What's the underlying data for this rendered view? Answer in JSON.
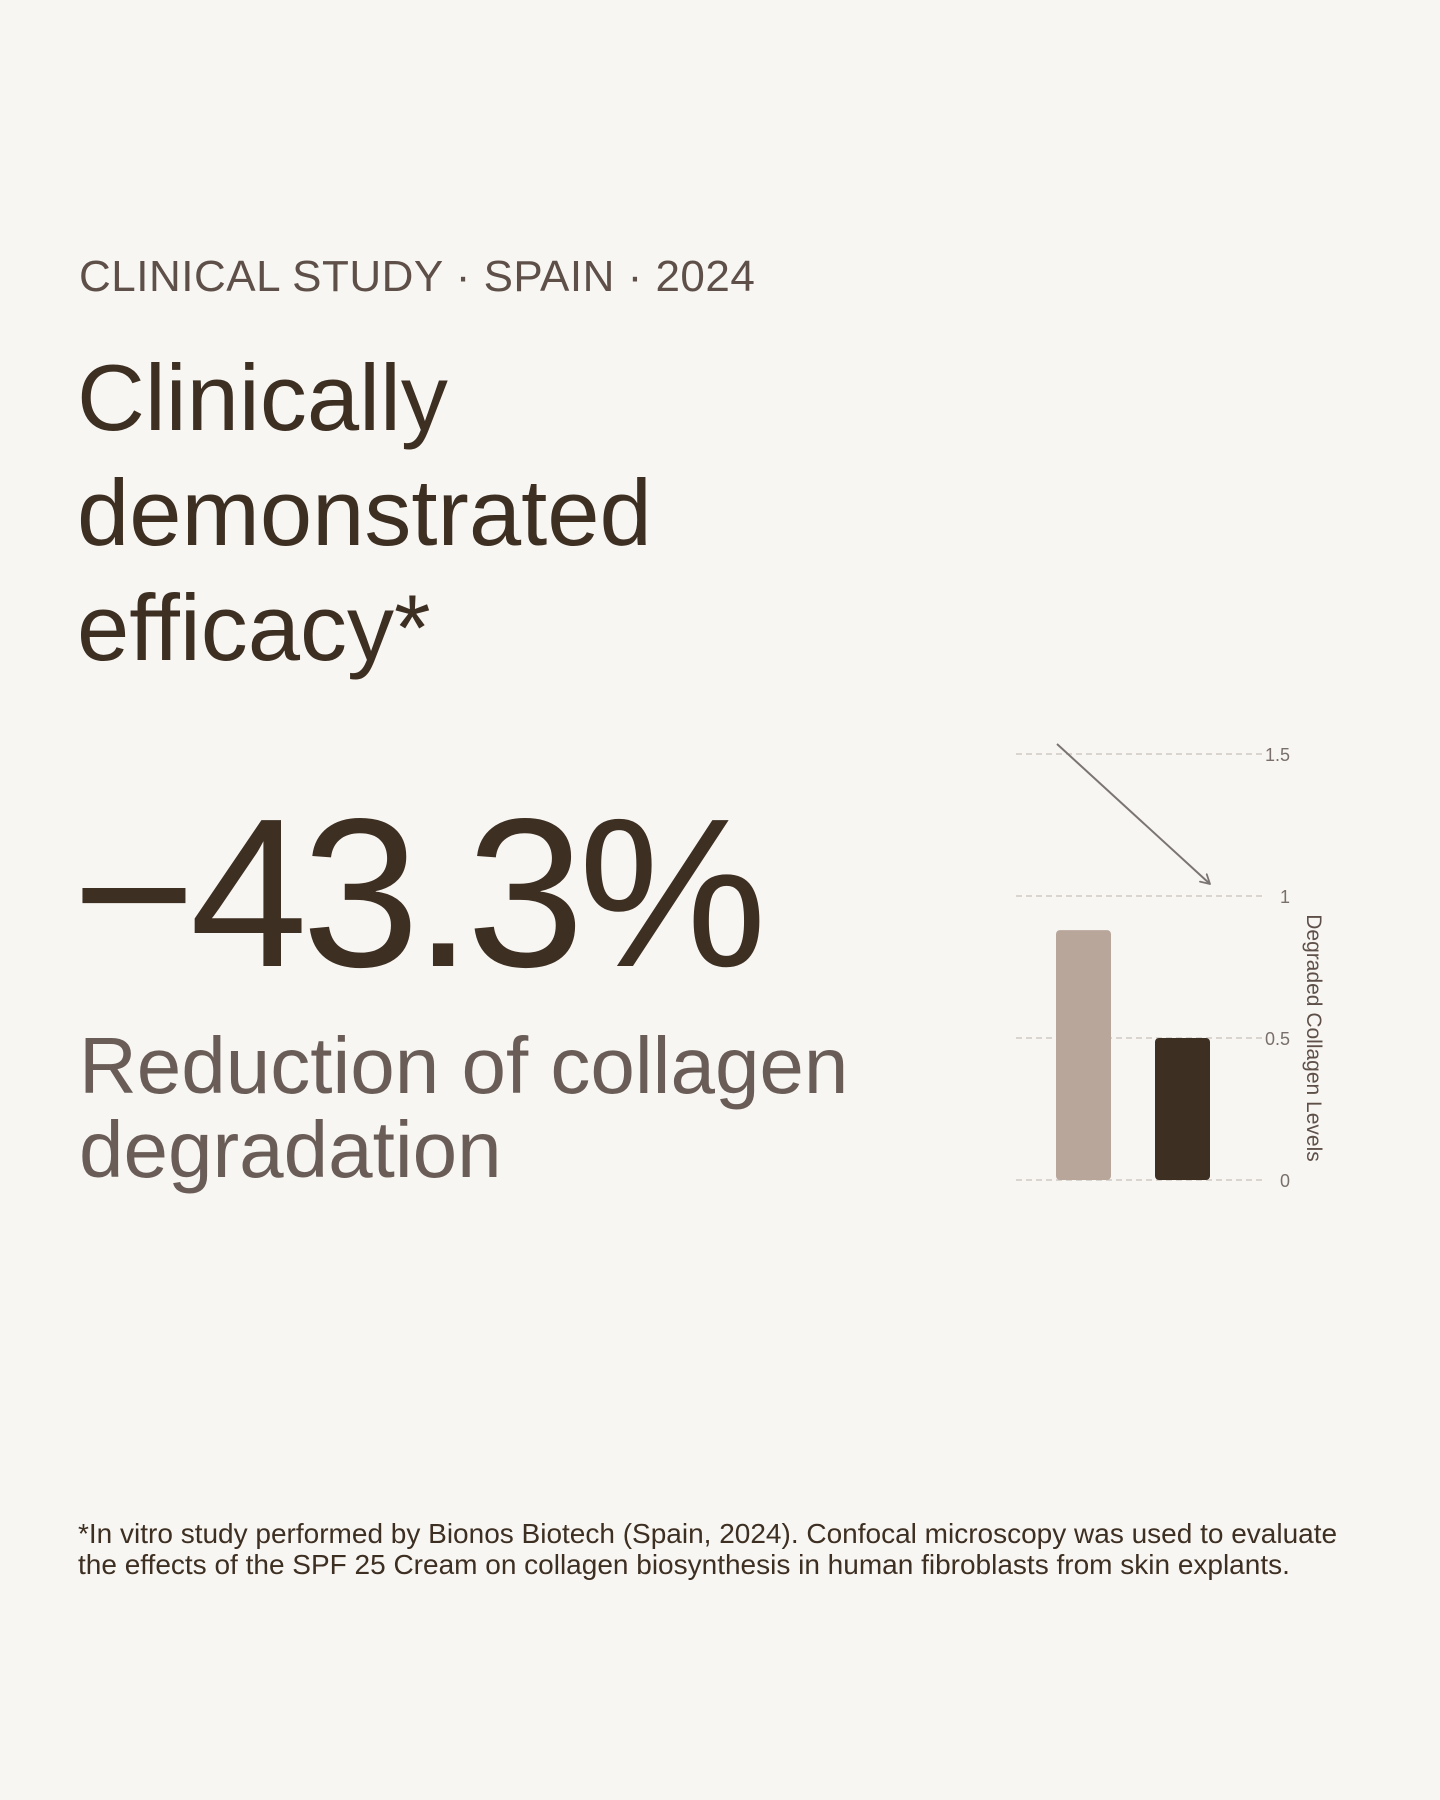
{
  "eyebrow": "CLINICAL STUDY · SPAIN · 2024",
  "headline": {
    "line1": "Clinically",
    "line2": "demonstrated",
    "line3": "efficacy*"
  },
  "stat": {
    "value": "−43.3%",
    "caption_line1": "Reduction of collagen",
    "caption_line2": "degradation"
  },
  "footnote": "*In vitro study performed by Bionos Biotech (Spain, 2024). Confocal microscopy was used to evaluate the effects of the SPF 25 Cream on collagen biosynthesis in human fibroblasts from skin explants.",
  "colors": {
    "background": "#f8f6f2",
    "bar_before": "#b8a69a",
    "bar_after": "#3d2f22",
    "text_dark": "#3d2f22",
    "text_muted": "#6a5d58",
    "grid": "#cfc9c3",
    "arrow": "#7a7572"
  },
  "chart_data": {
    "type": "bar",
    "title": "",
    "xlabel": "",
    "ylabel": "Degraded Collagen Levels",
    "categories": [
      "",
      ""
    ],
    "values": [
      0.88,
      0.5
    ],
    "ylim": [
      0,
      1.5
    ],
    "yticks": [
      0,
      0.5,
      1,
      1.5
    ],
    "ytick_labels": [
      "0",
      "0.5",
      "1",
      "1.5"
    ],
    "grid": true,
    "annotation": "downward arrow indicating reduction"
  }
}
